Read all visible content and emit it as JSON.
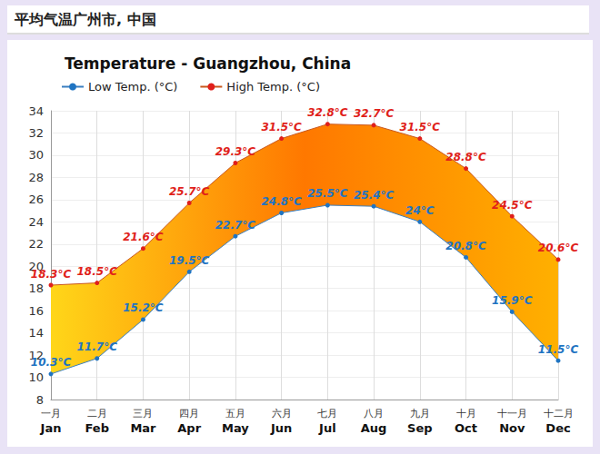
{
  "header": "平均气温广州市, 中国",
  "chart_data": {
    "type": "line",
    "title": "Temperature - Guangzhou, China",
    "categories": [
      "一月\nJan",
      "二月\nFeb",
      "三月\nMar",
      "四月\nApr",
      "五月\nMay",
      "六月\nJun",
      "七月\nJul",
      "八月\nAug",
      "九月\nSep",
      "十月\nOct",
      "十一月\nNov",
      "十二月\nDec"
    ],
    "series": [
      {
        "name": "Low Temp. (°C)",
        "color": "#1f74c2",
        "marker": "circle",
        "values": [
          10.3,
          11.7,
          15.2,
          19.5,
          22.7,
          24.8,
          25.5,
          25.4,
          24,
          20.8,
          15.9,
          11.5
        ],
        "value_labels": [
          "10.3°C",
          "11.7°C",
          "15.2°C",
          "19.5°C",
          "22.7°C",
          "24.8°C",
          "25.5°C",
          "25.4°C",
          "24°C",
          "20.8°C",
          "15.9°C",
          "11.5°C"
        ]
      },
      {
        "name": "High Temp. (°C)",
        "color": "#e01f1b",
        "marker": "circle",
        "values": [
          18.3,
          18.5,
          21.6,
          25.7,
          29.3,
          31.5,
          32.8,
          32.7,
          31.5,
          28.8,
          24.5,
          20.6
        ],
        "value_labels": [
          "18.3°C",
          "18.5°C",
          "21.6°C",
          "25.7°C",
          "29.3°C",
          "31.5°C",
          "32.8°C",
          "32.7°C",
          "31.5°C",
          "28.8°C",
          "24.5°C",
          "20.6°C"
        ]
      }
    ],
    "ylim": [
      8,
      34
    ],
    "yticks": [
      8,
      10,
      12,
      14,
      16,
      18,
      20,
      22,
      24,
      26,
      28,
      30,
      32,
      34
    ],
    "grid": true,
    "data_labels": true,
    "legend": "top-left"
  }
}
